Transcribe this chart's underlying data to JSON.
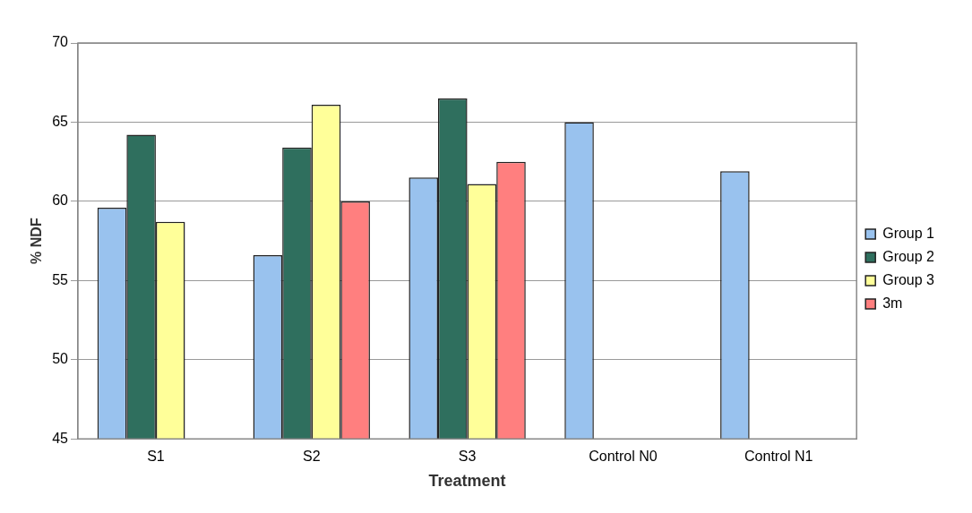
{
  "chart_data": {
    "type": "bar",
    "xlabel": "Treatment",
    "ylabel": "% NDF",
    "categories": [
      "S1",
      "S2",
      "S3",
      "Control N0",
      "Control N1"
    ],
    "series": [
      {
        "name": "Group 1",
        "color": "#99c2ee",
        "values": [
          59.6,
          56.6,
          61.5,
          65.0,
          61.9
        ]
      },
      {
        "name": "Group 2",
        "color": "#2f6f5e",
        "values": [
          64.2,
          63.4,
          66.5,
          null,
          null
        ]
      },
      {
        "name": "Group 3",
        "color": "#ffff99",
        "values": [
          58.7,
          66.1,
          61.1,
          null,
          null
        ]
      },
      {
        "name": "3m",
        "color": "#ff7f7f",
        "values": [
          null,
          60.0,
          62.5,
          null,
          null
        ]
      }
    ],
    "ylim": [
      45,
      70
    ],
    "yticks": [
      45,
      50,
      55,
      60,
      65,
      70
    ],
    "grid": "y",
    "legend": "right"
  }
}
